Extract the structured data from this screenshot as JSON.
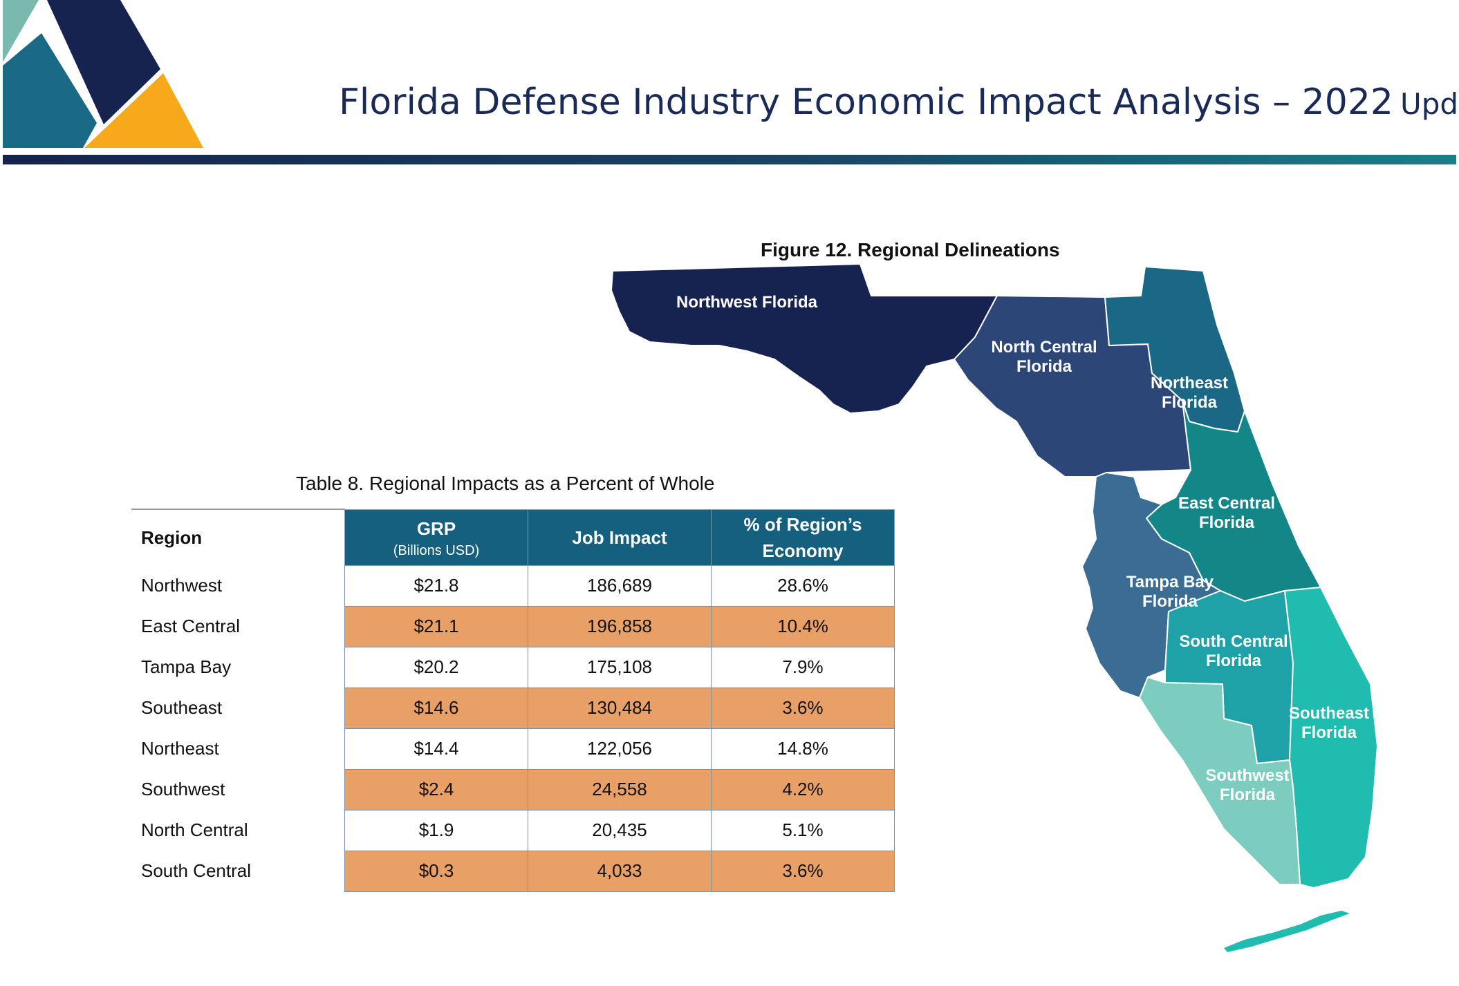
{
  "header": {
    "title": "Florida Defense Industry Economic Impact Analysis – 2022",
    "title_suffix": "Update"
  },
  "colors": {
    "logo_dark": "#15234e",
    "logo_teal": "#1a6a86",
    "logo_light": "#7ab9ae",
    "logo_orange": "#f7a81b",
    "table_header": "#14607e",
    "row_highlight": "#e9a067"
  },
  "figure": {
    "caption": "Figure 12. Regional Delineations",
    "regions": [
      {
        "key": "northwest",
        "line1": "Northwest Florida",
        "line2": "",
        "color": "#16224f"
      },
      {
        "key": "north_central",
        "line1": "North Central",
        "line2": "Florida",
        "color": "#2b4677"
      },
      {
        "key": "northeast",
        "line1": "Northeast",
        "line2": "Florida",
        "color": "#1a6786"
      },
      {
        "key": "east_central",
        "line1": "East Central",
        "line2": "Florida",
        "color": "#138688"
      },
      {
        "key": "tampa_bay",
        "line1": "Tampa Bay",
        "line2": "Florida",
        "color": "#3a6c94"
      },
      {
        "key": "south_central",
        "line1": "South Central",
        "line2": "Florida",
        "color": "#1fa1a8"
      },
      {
        "key": "southeast",
        "line1": "Southeast",
        "line2": "Florida",
        "color": "#21bcb0"
      },
      {
        "key": "southwest",
        "line1": "Southwest",
        "line2": "Florida",
        "color": "#7cccbf"
      }
    ]
  },
  "table": {
    "caption": "Table 8. Regional Impacts as a Percent of Whole",
    "headers": {
      "region": "Region",
      "grp": "GRP",
      "grp_unit": "(Billions USD)",
      "jobs": "Job Impact",
      "pct_line1": "% of Region’s",
      "pct_line2": "Economy"
    },
    "rows": [
      {
        "region": "Northwest",
        "grp": "$21.8",
        "jobs": "186,689",
        "pct": "28.6%"
      },
      {
        "region": "East Central",
        "grp": "$21.1",
        "jobs": "196,858",
        "pct": "10.4%"
      },
      {
        "region": "Tampa Bay",
        "grp": "$20.2",
        "jobs": "175,108",
        "pct": "7.9%"
      },
      {
        "region": "Southeast",
        "grp": "$14.6",
        "jobs": "130,484",
        "pct": "3.6%"
      },
      {
        "region": "Northeast",
        "grp": "$14.4",
        "jobs": "122,056",
        "pct": "14.8%"
      },
      {
        "region": "Southwest",
        "grp": "$2.4",
        "jobs": "24,558",
        "pct": "4.2%"
      },
      {
        "region": "North Central",
        "grp": "$1.9",
        "jobs": "20,435",
        "pct": "5.1%"
      },
      {
        "region": "South Central",
        "grp": "$0.3",
        "jobs": "4,033",
        "pct": "3.6%"
      }
    ]
  }
}
